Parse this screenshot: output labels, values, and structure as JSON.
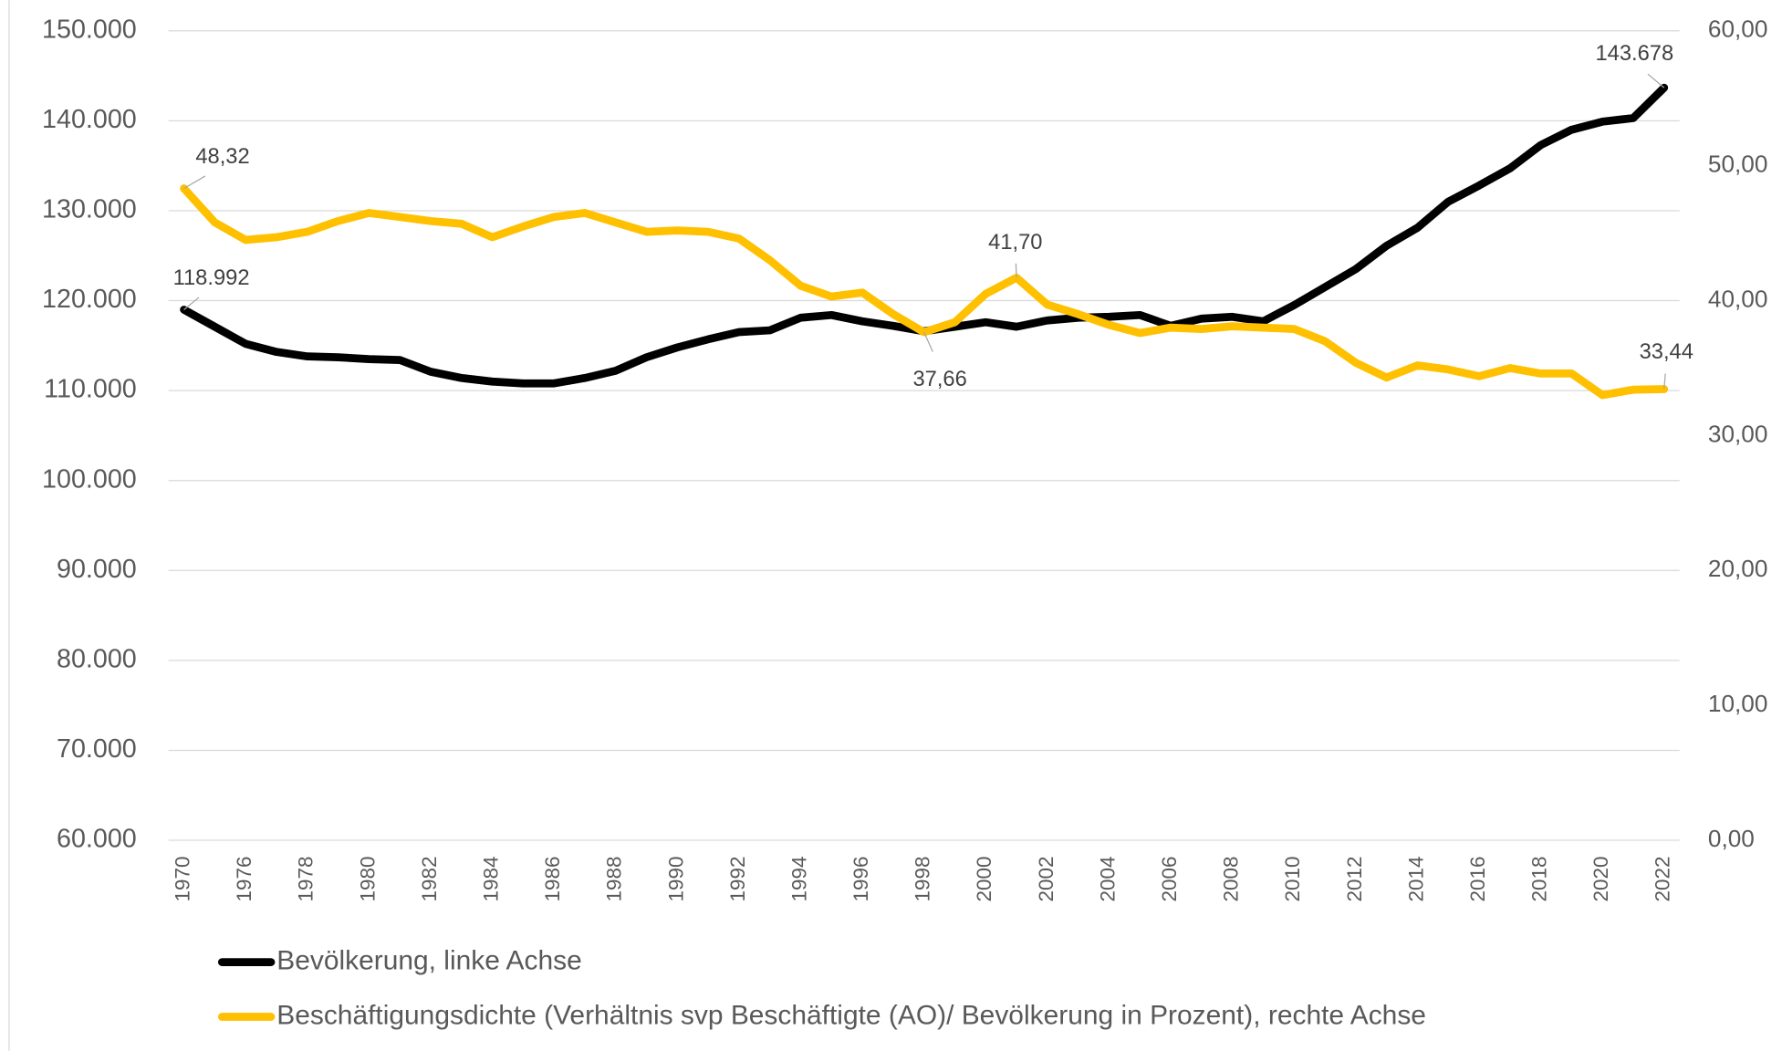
{
  "chart_data": {
    "type": "line",
    "categories": [
      "1970",
      null,
      "1976",
      null,
      "1978",
      null,
      "1980",
      null,
      "1982",
      null,
      "1984",
      null,
      "1986",
      null,
      "1988",
      null,
      "1990",
      null,
      "1992",
      null,
      "1994",
      null,
      "1996",
      null,
      "1998",
      null,
      "2000",
      null,
      "2002",
      null,
      "2004",
      null,
      "2006",
      null,
      "2008",
      null,
      "2010",
      null,
      "2012",
      null,
      "2014",
      null,
      "2016",
      null,
      "2018",
      null,
      "2020",
      null,
      "2022"
    ],
    "series": [
      {
        "name": "Bevölkerung, linke Achse",
        "color": "#000000",
        "values": [
          118992,
          117100,
          115200,
          114300,
          113800,
          113700,
          113500,
          113400,
          112100,
          111400,
          111000,
          110800,
          110800,
          111400,
          112200,
          113700,
          114800,
          115700,
          116500,
          116700,
          118100,
          118400,
          117700,
          117200,
          116600,
          117100,
          117600,
          117100,
          117800,
          118100,
          118200,
          118400,
          117200,
          118000,
          118200,
          117700,
          119500,
          121500,
          123500,
          126100,
          128100,
          131000,
          132800,
          134700,
          137300,
          139000,
          139900,
          140300,
          143678
        ],
        "value_labels": [
          "118.992",
          null,
          null,
          null,
          null,
          null,
          null,
          null,
          null,
          null,
          null,
          null,
          null,
          null,
          null,
          null,
          null,
          null,
          null,
          null,
          null,
          null,
          null,
          null,
          null,
          null,
          null,
          null,
          null,
          null,
          null,
          null,
          null,
          null,
          null,
          null,
          null,
          null,
          null,
          null,
          null,
          null,
          null,
          null,
          null,
          null,
          null,
          null,
          "143.678"
        ]
      },
      {
        "name": "Beschäftigungsdichte (Verhältnis svp Beschäftigte (AO)/ Bevölkerung in Prozent), rechte Achse",
        "color": "#ffc000",
        "axis": "y2",
        "values": [
          48.32,
          45.8,
          44.5,
          44.7,
          45.1,
          45.9,
          46.5,
          46.2,
          45.9,
          45.7,
          44.7,
          45.5,
          46.2,
          46.5,
          45.8,
          45.1,
          45.2,
          45.1,
          44.6,
          43.0,
          41.1,
          40.3,
          40.6,
          39.0,
          37.66,
          38.4,
          40.5,
          41.7,
          39.7,
          39.0,
          38.2,
          37.6,
          38.0,
          37.9,
          38.1,
          38.0,
          37.9,
          37.0,
          35.4,
          34.3,
          35.2,
          34.9,
          34.4,
          35.0,
          34.6,
          34.6,
          33.0,
          33.4,
          33.44
        ],
        "value_labels": [
          "48,32",
          null,
          null,
          null,
          null,
          null,
          null,
          null,
          null,
          null,
          null,
          null,
          null,
          null,
          null,
          null,
          null,
          null,
          null,
          null,
          null,
          null,
          null,
          null,
          "37,66",
          null,
          null,
          "41,70",
          null,
          null,
          null,
          null,
          null,
          null,
          null,
          null,
          null,
          null,
          null,
          null,
          null,
          null,
          null,
          null,
          null,
          null,
          null,
          null,
          "33,44"
        ]
      }
    ],
    "ylim": [
      60000,
      150000
    ],
    "yticks": [
      {
        "value": 60000,
        "label": "60.000"
      },
      {
        "value": 70000,
        "label": "70.000"
      },
      {
        "value": 80000,
        "label": "80.000"
      },
      {
        "value": 90000,
        "label": "90.000"
      },
      {
        "value": 100000,
        "label": "100.000"
      },
      {
        "value": 110000,
        "label": "110.000"
      },
      {
        "value": 120000,
        "label": "120.000"
      },
      {
        "value": 130000,
        "label": "130.000"
      },
      {
        "value": 140000,
        "label": "140.000"
      },
      {
        "value": 150000,
        "label": "150.000"
      }
    ],
    "y2lim": [
      0,
      60
    ],
    "y2ticks": [
      {
        "value": 0,
        "label": "0,00"
      },
      {
        "value": 10,
        "label": "10,00"
      },
      {
        "value": 20,
        "label": "20,00"
      },
      {
        "value": 30,
        "label": "30,00"
      },
      {
        "value": 40,
        "label": "40,00"
      },
      {
        "value": 50,
        "label": "50,00"
      },
      {
        "value": 60,
        "label": "60,00"
      }
    ],
    "grid": true,
    "legend": "bottom"
  }
}
